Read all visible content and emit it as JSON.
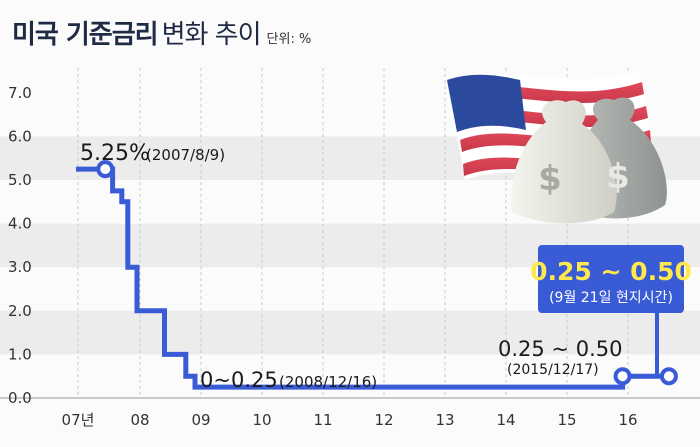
{
  "title": {
    "main": "미국 기준금리",
    "light": "변화 추이",
    "unit": "단위: %"
  },
  "colors": {
    "line": "#3a5bd6",
    "callout_bg": "#3a5bd6",
    "callout_text": "#ffe84d",
    "band": "#ececec"
  },
  "chart_data": {
    "type": "line",
    "x_tick_labels": [
      "07년",
      "08",
      "09",
      "10",
      "11",
      "12",
      "13",
      "14",
      "15",
      "16"
    ],
    "y_tick_labels": [
      "0.0",
      "1.0",
      "2.0",
      "3.0",
      "4.0",
      "5.0",
      "6.0",
      "7.0"
    ],
    "ylim": [
      0,
      7
    ],
    "xlim": [
      2007,
      2016.9
    ],
    "series": [
      {
        "points": [
          [
            2007.0,
            5.25
          ],
          [
            2007.6,
            5.25
          ],
          [
            2007.6,
            4.75
          ],
          [
            2007.75,
            4.75
          ],
          [
            2007.75,
            4.5
          ],
          [
            2007.85,
            4.5
          ],
          [
            2007.85,
            3.0
          ],
          [
            2008.0,
            3.0
          ],
          [
            2008.0,
            2.0
          ],
          [
            2008.45,
            2.0
          ],
          [
            2008.45,
            1.0
          ],
          [
            2008.8,
            1.0
          ],
          [
            2008.8,
            0.5
          ],
          [
            2008.95,
            0.5
          ],
          [
            2008.95,
            0.25
          ],
          [
            2015.96,
            0.25
          ],
          [
            2015.96,
            0.5
          ],
          [
            2016.72,
            0.5
          ]
        ]
      }
    ],
    "annotations": {
      "a2007": {
        "value": "5.25%",
        "date": "(2007/8/9)"
      },
      "a2008": {
        "value": "0~0.25",
        "date": "(2008/12/16)"
      },
      "a2015": {
        "value": "0.25 ~ 0.50",
        "date": "(2015/12/17)"
      },
      "callout": {
        "value": "0.25 ~ 0.50",
        "note": "(9월 21일 현지시간)"
      }
    }
  }
}
